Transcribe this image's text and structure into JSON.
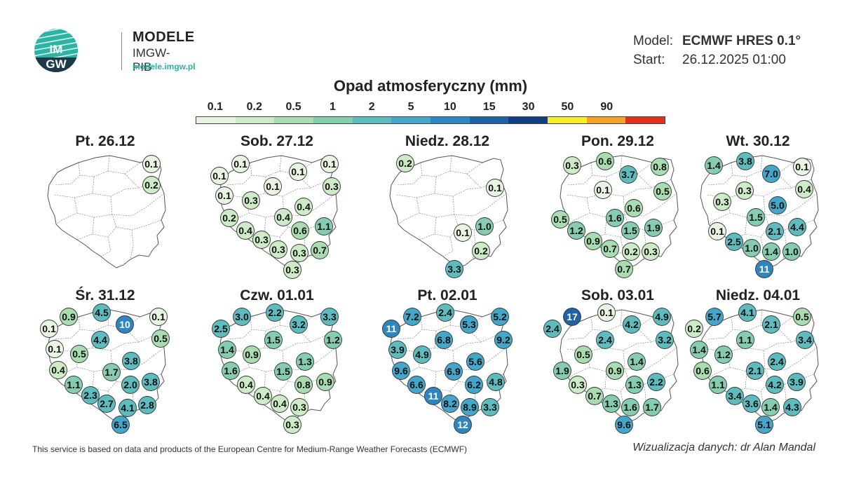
{
  "header": {
    "brand": "MODELE",
    "brand_sub": "IMGW-PIB",
    "brand_url": "modele.imgw.pl",
    "logo_text_top": "IM",
    "logo_text_bottom": "GW"
  },
  "meta": {
    "model_label": "Model:",
    "model_value": "ECMWF HRES 0.1°",
    "start_label": "Start:",
    "start_value": "26.12.2025 01:00"
  },
  "legend": {
    "title": "Opad atmosferyczny (mm)",
    "labels": [
      "0.1",
      "0.2",
      "0.5",
      "1",
      "2",
      "5",
      "10",
      "15",
      "30",
      "50",
      "90"
    ],
    "colors": [
      "#e8f5e2",
      "#cdebc6",
      "#a9dcb0",
      "#86cdb0",
      "#5fbcbe",
      "#44a6c8",
      "#2f86bf",
      "#1f63a6",
      "#0f3f7f",
      "#f6ee2a",
      "#f4a32a",
      "#e0301e"
    ]
  },
  "colors": {
    "brand_teal": "#2bb3a5",
    "map_fill": "#ffffff",
    "map_border": "#555555"
  },
  "panels": [
    {
      "title": "Pt. 26.12",
      "points": [
        {
          "v": "0.1",
          "x": 168,
          "y": 18
        },
        {
          "v": "0.2",
          "x": 168,
          "y": 48
        }
      ]
    },
    {
      "title": "Sob. 27.12",
      "points": [
        {
          "v": "0.1",
          "x": 50,
          "y": 18
        },
        {
          "v": "0.1",
          "x": 20,
          "y": 35
        },
        {
          "v": "0.1",
          "x": 132,
          "y": 29
        },
        {
          "v": "0.1",
          "x": 177,
          "y": 18
        },
        {
          "v": "0.3",
          "x": 180,
          "y": 50
        },
        {
          "v": "0.1",
          "x": 96,
          "y": 50
        },
        {
          "v": "0.1",
          "x": 27,
          "y": 63
        },
        {
          "v": "0.3",
          "x": 65,
          "y": 70
        },
        {
          "v": "0.4",
          "x": 140,
          "y": 79
        },
        {
          "v": "0.2",
          "x": 34,
          "y": 95
        },
        {
          "v": "0.4",
          "x": 111,
          "y": 94
        },
        {
          "v": "1.1",
          "x": 169,
          "y": 107
        },
        {
          "v": "0.4",
          "x": 57,
          "y": 113
        },
        {
          "v": "0.6",
          "x": 135,
          "y": 113
        },
        {
          "v": "0.3",
          "x": 80,
          "y": 126
        },
        {
          "v": "0.3",
          "x": 104,
          "y": 140
        },
        {
          "v": "0.3",
          "x": 134,
          "y": 145
        },
        {
          "v": "0.7",
          "x": 163,
          "y": 141
        },
        {
          "v": "0.3",
          "x": 124,
          "y": 169
        }
      ]
    },
    {
      "title": "Niedz. 28.12",
      "points": [
        {
          "v": "0.2",
          "x": 42,
          "y": 17
        },
        {
          "v": "0.1",
          "x": 170,
          "y": 52
        },
        {
          "v": "1.0",
          "x": 155,
          "y": 107
        },
        {
          "v": "0.1",
          "x": 124,
          "y": 116
        },
        {
          "v": "0.2",
          "x": 150,
          "y": 142
        },
        {
          "v": "3.3",
          "x": 112,
          "y": 168
        }
      ]
    },
    {
      "title": "Pon. 29.12",
      "points": [
        {
          "v": "0.3",
          "x": 37,
          "y": 20
        },
        {
          "v": "0.6",
          "x": 84,
          "y": 14
        },
        {
          "v": "3.7",
          "x": 117,
          "y": 33
        },
        {
          "v": "0.8",
          "x": 162,
          "y": 22
        },
        {
          "v": "0.1",
          "x": 81,
          "y": 55
        },
        {
          "v": "0.5",
          "x": 166,
          "y": 57
        },
        {
          "v": "0.6",
          "x": 125,
          "y": 81
        },
        {
          "v": "0.5",
          "x": 20,
          "y": 97
        },
        {
          "v": "1.6",
          "x": 98,
          "y": 95
        },
        {
          "v": "1.2",
          "x": 43,
          "y": 113
        },
        {
          "v": "1.5",
          "x": 120,
          "y": 113
        },
        {
          "v": "1.9",
          "x": 153,
          "y": 109
        },
        {
          "v": "0.9",
          "x": 67,
          "y": 128
        },
        {
          "v": "0.7",
          "x": 91,
          "y": 139
        },
        {
          "v": "0.2",
          "x": 121,
          "y": 143
        },
        {
          "v": "0.3",
          "x": 149,
          "y": 143
        },
        {
          "v": "0.7",
          "x": 111,
          "y": 168
        }
      ]
    },
    {
      "title": "Wt. 30.12",
      "points": [
        {
          "v": "1.4",
          "x": 39,
          "y": 20
        },
        {
          "v": "3.8",
          "x": 84,
          "y": 14
        },
        {
          "v": "7.0",
          "x": 121,
          "y": 32
        },
        {
          "v": "0.1",
          "x": 165,
          "y": 22
        },
        {
          "v": "0.3",
          "x": 83,
          "y": 56
        },
        {
          "v": "0.4",
          "x": 168,
          "y": 54
        },
        {
          "v": "0.3",
          "x": 51,
          "y": 72
        },
        {
          "v": "5.0",
          "x": 130,
          "y": 77
        },
        {
          "v": "1.5",
          "x": 99,
          "y": 94
        },
        {
          "v": "4.4",
          "x": 158,
          "y": 108
        },
        {
          "v": "0.1",
          "x": 44,
          "y": 114
        },
        {
          "v": "2.1",
          "x": 126,
          "y": 114
        },
        {
          "v": "2.5",
          "x": 68,
          "y": 129
        },
        {
          "v": "1.0",
          "x": 93,
          "y": 138
        },
        {
          "v": "1.4",
          "x": 121,
          "y": 143
        },
        {
          "v": "1.0",
          "x": 150,
          "y": 143
        },
        {
          "v": "11",
          "x": 111,
          "y": 168
        }
      ]
    },
    {
      "title": "Śr. 31.12",
      "points": [
        {
          "v": "0.9",
          "x": 50,
          "y": 16
        },
        {
          "v": "4.5",
          "x": 97,
          "y": 10
        },
        {
          "v": "10",
          "x": 130,
          "y": 27
        },
        {
          "v": "0.1",
          "x": 178,
          "y": 16
        },
        {
          "v": "0.1",
          "x": 22,
          "y": 33
        },
        {
          "v": "0.5",
          "x": 181,
          "y": 47
        },
        {
          "v": "4.4",
          "x": 95,
          "y": 49
        },
        {
          "v": "0.1",
          "x": 30,
          "y": 62
        },
        {
          "v": "0.5",
          "x": 65,
          "y": 69
        },
        {
          "v": "3.8",
          "x": 139,
          "y": 79
        },
        {
          "v": "0.4",
          "x": 35,
          "y": 92
        },
        {
          "v": "1.7",
          "x": 111,
          "y": 95
        },
        {
          "v": "1.1",
          "x": 57,
          "y": 113
        },
        {
          "v": "2.0",
          "x": 138,
          "y": 113
        },
        {
          "v": "3.8",
          "x": 167,
          "y": 109
        },
        {
          "v": "2.3",
          "x": 81,
          "y": 128
        },
        {
          "v": "2.7",
          "x": 104,
          "y": 140
        },
        {
          "v": "4.1",
          "x": 134,
          "y": 146
        },
        {
          "v": "2.8",
          "x": 162,
          "y": 142
        },
        {
          "v": "6.5",
          "x": 124,
          "y": 170
        }
      ]
    },
    {
      "title": "Czw. 01.01",
      "points": [
        {
          "v": "3.0",
          "x": 52,
          "y": 16
        },
        {
          "v": "2.2",
          "x": 99,
          "y": 10
        },
        {
          "v": "3.3",
          "x": 177,
          "y": 16
        },
        {
          "v": "2.5",
          "x": 22,
          "y": 33
        },
        {
          "v": "3.2",
          "x": 133,
          "y": 27
        },
        {
          "v": "1.2",
          "x": 182,
          "y": 49
        },
        {
          "v": "1.5",
          "x": 97,
          "y": 49
        },
        {
          "v": "1.4",
          "x": 31,
          "y": 63
        },
        {
          "v": "0.9",
          "x": 66,
          "y": 70
        },
        {
          "v": "1.3",
          "x": 142,
          "y": 80
        },
        {
          "v": "1.6",
          "x": 36,
          "y": 93
        },
        {
          "v": "1.5",
          "x": 111,
          "y": 94
        },
        {
          "v": "0.4",
          "x": 58,
          "y": 113
        },
        {
          "v": "0.8",
          "x": 140,
          "y": 113
        },
        {
          "v": "0.9",
          "x": 171,
          "y": 109
        },
        {
          "v": "0.4",
          "x": 82,
          "y": 129
        },
        {
          "v": "0.4",
          "x": 106,
          "y": 140
        },
        {
          "v": "0.3",
          "x": 134,
          "y": 145
        },
        {
          "v": "0.3",
          "x": 124,
          "y": 170
        }
      ]
    },
    {
      "title": "Pt. 02.01",
      "points": [
        {
          "v": "7.2",
          "x": 52,
          "y": 16
        },
        {
          "v": "2.4",
          "x": 99,
          "y": 10
        },
        {
          "v": "5.2",
          "x": 177,
          "y": 16
        },
        {
          "v": "11",
          "x": 22,
          "y": 33
        },
        {
          "v": "5.3",
          "x": 133,
          "y": 27
        },
        {
          "v": "9.2",
          "x": 182,
          "y": 49
        },
        {
          "v": "6.8",
          "x": 97,
          "y": 49
        },
        {
          "v": "3.9",
          "x": 31,
          "y": 63
        },
        {
          "v": "4.9",
          "x": 66,
          "y": 70
        },
        {
          "v": "5.6",
          "x": 142,
          "y": 80
        },
        {
          "v": "9.6",
          "x": 36,
          "y": 93
        },
        {
          "v": "6.9",
          "x": 111,
          "y": 94
        },
        {
          "v": "6.6",
          "x": 58,
          "y": 113
        },
        {
          "v": "6.2",
          "x": 140,
          "y": 113
        },
        {
          "v": "4.8",
          "x": 171,
          "y": 109
        },
        {
          "v": "11",
          "x": 82,
          "y": 129
        },
        {
          "v": "8.2",
          "x": 106,
          "y": 140
        },
        {
          "v": "8.9",
          "x": 134,
          "y": 145
        },
        {
          "v": "3.3",
          "x": 163,
          "y": 145
        },
        {
          "v": "12",
          "x": 124,
          "y": 170
        }
      ]
    },
    {
      "title": "Sob. 03.01",
      "points": [
        {
          "v": "17",
          "x": 37,
          "y": 16
        },
        {
          "v": "0.1",
          "x": 86,
          "y": 10
        },
        {
          "v": "4.9",
          "x": 165,
          "y": 16
        },
        {
          "v": "2.4",
          "x": 9,
          "y": 33
        },
        {
          "v": "4.2",
          "x": 122,
          "y": 27
        },
        {
          "v": "3.2",
          "x": 169,
          "y": 49
        },
        {
          "v": "2.4",
          "x": 84,
          "y": 49
        },
        {
          "v": "0.5",
          "x": 53,
          "y": 70
        },
        {
          "v": "1.4",
          "x": 129,
          "y": 80
        },
        {
          "v": "1.9",
          "x": 23,
          "y": 93
        },
        {
          "v": "0.9",
          "x": 98,
          "y": 93
        },
        {
          "v": "2.2",
          "x": 157,
          "y": 109
        },
        {
          "v": "0.3",
          "x": 45,
          "y": 113
        },
        {
          "v": "1.3",
          "x": 126,
          "y": 113
        },
        {
          "v": "0.7",
          "x": 69,
          "y": 129
        },
        {
          "v": "1.3",
          "x": 93,
          "y": 140
        },
        {
          "v": "1.6",
          "x": 120,
          "y": 145
        },
        {
          "v": "1.7",
          "x": 151,
          "y": 145
        },
        {
          "v": "9.6",
          "x": 111,
          "y": 170
        }
      ]
    },
    {
      "title": "Niedz. 04.01",
      "points": [
        {
          "v": "5.7",
          "x": 40,
          "y": 16
        },
        {
          "v": "4.1",
          "x": 87,
          "y": 10
        },
        {
          "v": "0.5",
          "x": 165,
          "y": 16
        },
        {
          "v": "0.2",
          "x": 11,
          "y": 33
        },
        {
          "v": "2.1",
          "x": 121,
          "y": 27
        },
        {
          "v": "3.4",
          "x": 169,
          "y": 49
        },
        {
          "v": "1.1",
          "x": 84,
          "y": 49
        },
        {
          "v": "1.4",
          "x": 18,
          "y": 63
        },
        {
          "v": "1.2",
          "x": 53,
          "y": 70
        },
        {
          "v": "2.4",
          "x": 129,
          "y": 80
        },
        {
          "v": "0.6",
          "x": 23,
          "y": 93
        },
        {
          "v": "2.1",
          "x": 98,
          "y": 93
        },
        {
          "v": "4.2",
          "x": 126,
          "y": 113
        },
        {
          "v": "3.9",
          "x": 157,
          "y": 109
        },
        {
          "v": "1.1",
          "x": 45,
          "y": 113
        },
        {
          "v": "3.4",
          "x": 69,
          "y": 129
        },
        {
          "v": "3.6",
          "x": 93,
          "y": 140
        },
        {
          "v": "1.4",
          "x": 120,
          "y": 145
        },
        {
          "v": "4.3",
          "x": 151,
          "y": 145
        },
        {
          "v": "5.1",
          "x": 111,
          "y": 170
        }
      ]
    }
  ],
  "footer": {
    "left": "This service is based on data and products of the European Centre for Medium-Range Weather Forecasts (ECMWF)",
    "right": "Wizualizacja danych: dr Alan Mandal"
  }
}
